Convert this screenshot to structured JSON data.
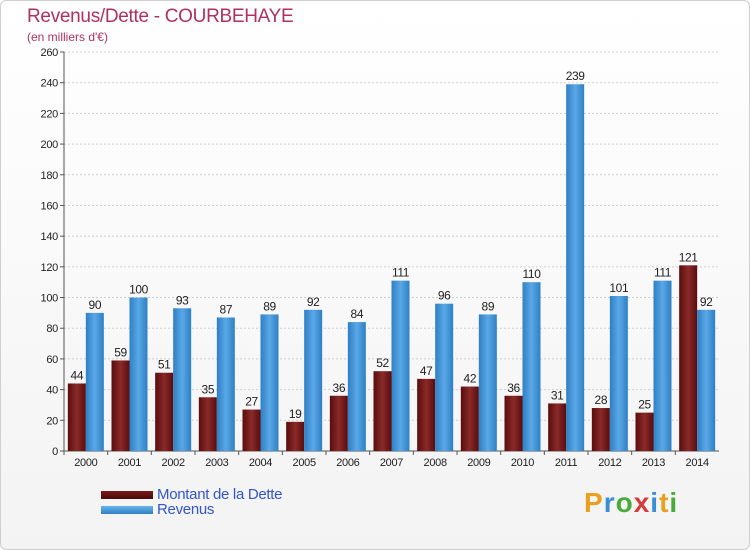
{
  "chart_data": {
    "type": "bar",
    "title": "Revenus/Dette - COURBEHAYE",
    "subtitle": "(en milliers d'€)",
    "categories": [
      "2000",
      "2001",
      "2002",
      "2003",
      "2004",
      "2005",
      "2006",
      "2007",
      "2008",
      "2009",
      "2010",
      "2011",
      "2012",
      "2013",
      "2014"
    ],
    "series": [
      {
        "name": "Montant de la Dette",
        "color": "#7a1a1a",
        "values": [
          44,
          59,
          51,
          35,
          27,
          19,
          36,
          52,
          47,
          42,
          36,
          31,
          28,
          25,
          121
        ]
      },
      {
        "name": "Revenus",
        "color": "#3d92d8",
        "values": [
          90,
          100,
          93,
          87,
          89,
          92,
          84,
          111,
          96,
          89,
          110,
          239,
          101,
          111,
          92
        ]
      }
    ],
    "ylim": [
      0,
      260
    ],
    "yticks": [
      0,
      20,
      40,
      60,
      80,
      100,
      120,
      140,
      160,
      180,
      200,
      220,
      240,
      260
    ],
    "grid": true,
    "xlabel": "",
    "ylabel": "",
    "legend": "bottom-left"
  },
  "logo": {
    "letters": [
      "P",
      "r",
      "o",
      "x",
      "i",
      "t",
      "i"
    ]
  }
}
